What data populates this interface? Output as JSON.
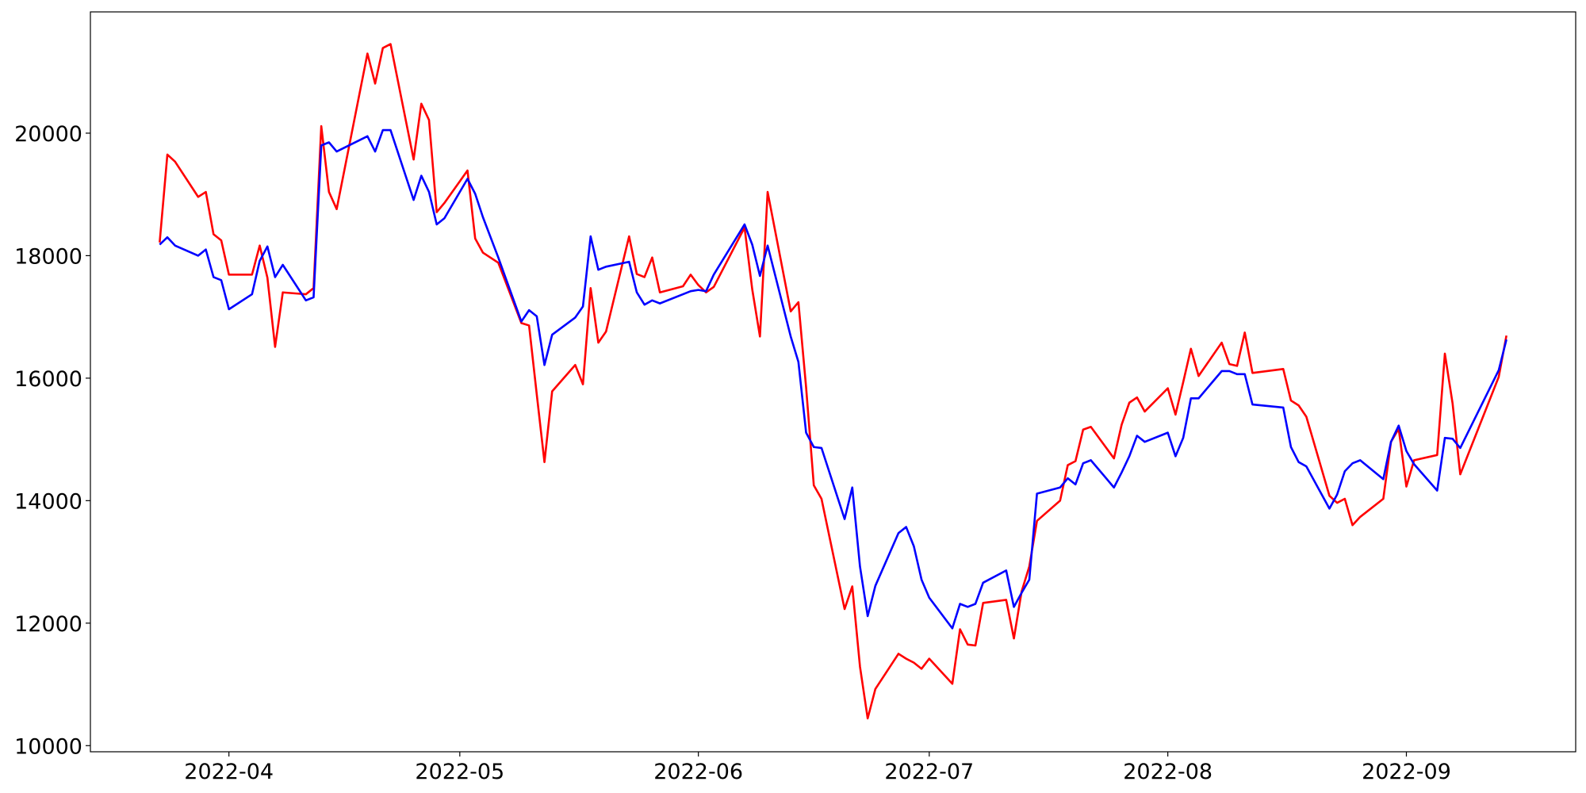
{
  "chart_data": {
    "type": "line",
    "x": [
      "2022-03-23",
      "2022-03-24",
      "2022-03-25",
      "2022-03-28",
      "2022-03-29",
      "2022-03-30",
      "2022-03-31",
      "2022-04-01",
      "2022-04-04",
      "2022-04-05",
      "2022-04-06",
      "2022-04-07",
      "2022-04-08",
      "2022-04-11",
      "2022-04-12",
      "2022-04-13",
      "2022-04-14",
      "2022-04-15",
      "2022-04-19",
      "2022-04-20",
      "2022-04-21",
      "2022-04-22",
      "2022-04-25",
      "2022-04-26",
      "2022-04-27",
      "2022-04-28",
      "2022-04-29",
      "2022-05-02",
      "2022-05-03",
      "2022-05-04",
      "2022-05-06",
      "2022-05-09",
      "2022-05-10",
      "2022-05-11",
      "2022-05-12",
      "2022-05-13",
      "2022-05-16",
      "2022-05-17",
      "2022-05-18",
      "2022-05-19",
      "2022-05-20",
      "2022-05-23",
      "2022-05-24",
      "2022-05-25",
      "2022-05-26",
      "2022-05-27",
      "2022-05-30",
      "2022-05-31",
      "2022-06-01",
      "2022-06-02",
      "2022-06-03",
      "2022-06-07",
      "2022-06-08",
      "2022-06-09",
      "2022-06-10",
      "2022-06-13",
      "2022-06-14",
      "2022-06-15",
      "2022-06-16",
      "2022-06-17",
      "2022-06-20",
      "2022-06-21",
      "2022-06-22",
      "2022-06-23",
      "2022-06-24",
      "2022-06-27",
      "2022-06-28",
      "2022-06-29",
      "2022-06-30",
      "2022-07-01",
      "2022-07-04",
      "2022-07-05",
      "2022-07-06",
      "2022-07-07",
      "2022-07-08",
      "2022-07-11",
      "2022-07-12",
      "2022-07-13",
      "2022-07-14",
      "2022-07-15",
      "2022-07-18",
      "2022-07-19",
      "2022-07-20",
      "2022-07-21",
      "2022-07-22",
      "2022-07-25",
      "2022-07-26",
      "2022-07-27",
      "2022-07-28",
      "2022-07-29",
      "2022-08-01",
      "2022-08-02",
      "2022-08-03",
      "2022-08-04",
      "2022-08-05",
      "2022-08-08",
      "2022-08-09",
      "2022-08-10",
      "2022-08-11",
      "2022-08-12",
      "2022-08-16",
      "2022-08-17",
      "2022-08-18",
      "2022-08-19",
      "2022-08-22",
      "2022-08-23",
      "2022-08-24",
      "2022-08-25",
      "2022-08-26",
      "2022-08-29",
      "2022-08-30",
      "2022-08-31",
      "2022-09-01",
      "2022-09-02",
      "2022-09-05",
      "2022-09-06",
      "2022-09-07",
      "2022-09-08",
      "2022-09-13",
      "2022-09-14"
    ],
    "series": [
      {
        "color": "#ff0000",
        "values": [
          18215,
          19650,
          19535,
          18960,
          19040,
          18350,
          18250,
          17690,
          17690,
          18165,
          17640,
          16510,
          17400,
          17370,
          17470,
          20115,
          19040,
          18760,
          21300,
          20810,
          21390,
          21455,
          19570,
          20480,
          20215,
          18710,
          18860,
          19390,
          18280,
          18050,
          17885,
          16900,
          16860,
          15735,
          14630,
          15785,
          16215,
          15900,
          17470,
          16580,
          16760,
          18315,
          17700,
          17650,
          17970,
          17400,
          17500,
          17690,
          17520,
          17400,
          17490,
          18460,
          17450,
          16680,
          19040,
          17090,
          17240,
          15850,
          14250,
          14030,
          12230,
          12600,
          11290,
          10445,
          10925,
          11500,
          11420,
          11355,
          11255,
          11420,
          11010,
          11900,
          11650,
          11635,
          12330,
          12380,
          11750,
          12515,
          12925,
          13670,
          14000,
          14580,
          14645,
          15160,
          15205,
          14690,
          15240,
          15600,
          15685,
          15455,
          15835,
          15405,
          15935,
          16480,
          16035,
          16580,
          16230,
          16200,
          16745,
          16085,
          16150,
          15635,
          15555,
          15370,
          14080,
          13965,
          14030,
          13600,
          13735,
          14030,
          14960,
          15175,
          14230,
          14660,
          14745,
          16400,
          15590,
          14430,
          16020,
          16695
        ]
      },
      {
        "color": "#0000ff",
        "values": [
          18180,
          18300,
          18165,
          18000,
          18100,
          17650,
          17600,
          17125,
          17370,
          17915,
          18150,
          17650,
          17850,
          17270,
          17320,
          19800,
          19850,
          19700,
          19950,
          19700,
          20050,
          20050,
          18910,
          19305,
          19040,
          18510,
          18610,
          19255,
          19010,
          18630,
          17970,
          16925,
          17110,
          17010,
          16215,
          16710,
          16990,
          17170,
          18315,
          17770,
          17820,
          17900,
          17400,
          17200,
          17270,
          17220,
          17370,
          17420,
          17440,
          17420,
          17690,
          18510,
          18180,
          17670,
          18165,
          16680,
          16265,
          15110,
          14875,
          14860,
          13700,
          14215,
          12925,
          12115,
          12610,
          13470,
          13570,
          13255,
          12710,
          12415,
          11915,
          12315,
          12265,
          12315,
          12660,
          12860,
          12265,
          12495,
          12710,
          14115,
          14215,
          14365,
          14265,
          14610,
          14660,
          14215,
          14460,
          14725,
          15060,
          14960,
          15110,
          14725,
          15025,
          15670,
          15670,
          16115,
          16115,
          16065,
          16065,
          15570,
          15520,
          14875,
          14630,
          14560,
          13870,
          14100,
          14480,
          14610,
          14660,
          14350,
          14960,
          15225,
          14810,
          14595,
          14165,
          15025,
          15010,
          14860,
          16130,
          16630
        ]
      }
    ],
    "xlim": [
      "2022-03-14",
      "2022-09-23"
    ],
    "xticks": [
      {
        "value": "2022-04-01",
        "label": "2022-04"
      },
      {
        "value": "2022-05-01",
        "label": "2022-05"
      },
      {
        "value": "2022-06-01",
        "label": "2022-06"
      },
      {
        "value": "2022-07-01",
        "label": "2022-07"
      },
      {
        "value": "2022-08-01",
        "label": "2022-08"
      },
      {
        "value": "2022-09-01",
        "label": "2022-09"
      }
    ],
    "ylim": [
      9900,
      21980
    ],
    "yticks": [
      10000,
      12000,
      14000,
      16000,
      18000,
      20000
    ],
    "grid": false
  }
}
